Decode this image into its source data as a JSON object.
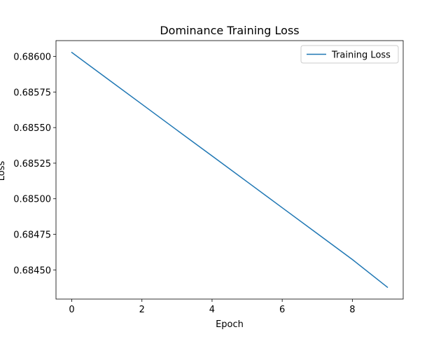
{
  "chart_data": {
    "type": "line",
    "title": "Dominance Training Loss",
    "xlabel": "Epoch",
    "ylabel": "Loss",
    "xlim": [
      -0.45,
      9.45
    ],
    "ylim": [
      0.684295,
      0.686111
    ],
    "xticks": [
      0,
      2,
      4,
      6,
      8
    ],
    "xtick_labels": [
      "0",
      "2",
      "4",
      "6",
      "8"
    ],
    "yticks": [
      0.6845,
      0.68475,
      0.685,
      0.68525,
      0.6855,
      0.68575,
      0.686
    ],
    "ytick_labels": [
      "0.68450",
      "0.68475",
      "0.68500",
      "0.68525",
      "0.68550",
      "0.68575",
      "0.68600"
    ],
    "grid": false,
    "legend_position": "top-right",
    "series": [
      {
        "name": "Training Loss",
        "color": "#1f77b4",
        "x": [
          0,
          1,
          2,
          3,
          4,
          5,
          6,
          7,
          8,
          9
        ],
        "y": [
          0.686028,
          0.685846,
          0.685664,
          0.685482,
          0.685301,
          0.685119,
          0.684937,
          0.684755,
          0.684573,
          0.684378
        ]
      }
    ]
  }
}
